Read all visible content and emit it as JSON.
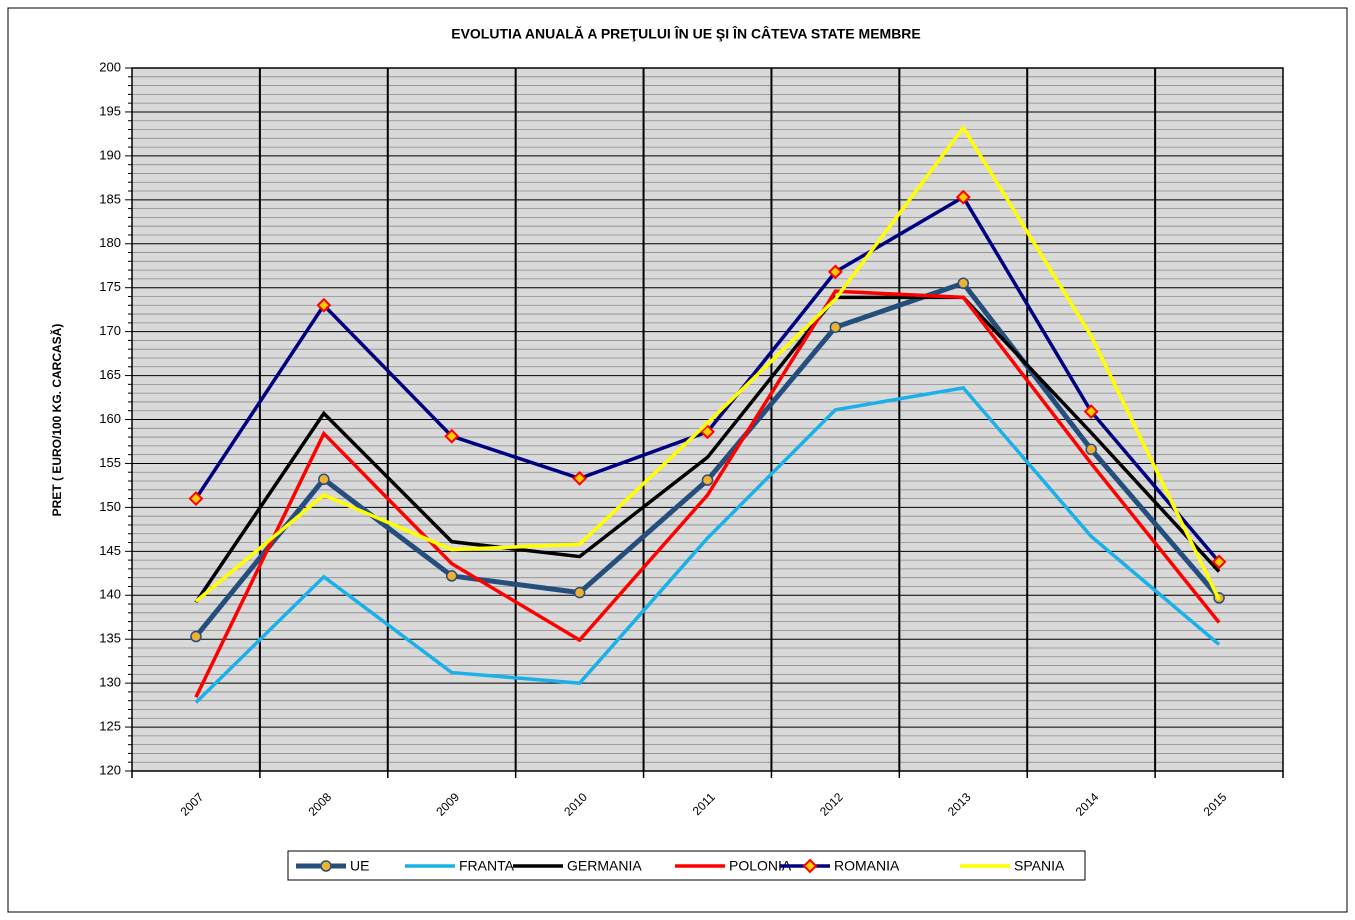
{
  "chart_data": {
    "type": "line",
    "title": "EVOLUTIA ANUALĂ  A PREŢULUI  ÎN  UE ŞI ÎN  CÂTEVA  STATE MEMBRE",
    "y_label": "PRET ( EURO/100 KG. CARCASĂ)",
    "categories": [
      "2007",
      "2008",
      "2009",
      "2010",
      "2011",
      "2012",
      "2013",
      "2014",
      "2015"
    ],
    "series": [
      {
        "name": "UE",
        "color": "#264e7d",
        "marker": "circle",
        "marker_color": "#f0b030",
        "values": [
          135.3,
          153.2,
          142.2,
          140.3,
          153.1,
          170.5,
          175.5,
          156.6,
          139.7
        ]
      },
      {
        "name": "FRANTA",
        "color": "#1ab0e8",
        "values": [
          127.8,
          142.1,
          131.2,
          130.0,
          146.5,
          161.1,
          163.6,
          146.7,
          134.4
        ]
      },
      {
        "name": "GERMANIA",
        "color": "#000000",
        "values": [
          139.2,
          160.7,
          146.1,
          144.4,
          155.7,
          173.9,
          173.9,
          158.5,
          142.7
        ]
      },
      {
        "name": "POLONIA",
        "color": "#ff0000",
        "values": [
          128.4,
          158.4,
          143.6,
          134.9,
          151.4,
          174.6,
          173.9,
          155.0,
          136.9
        ]
      },
      {
        "name": "ROMANIA",
        "color": "#000080",
        "marker": "diamond",
        "marker_color": "#ffcc00",
        "values": [
          151.0,
          173.0,
          158.1,
          153.3,
          158.6,
          176.8,
          185.3,
          160.9,
          143.8
        ]
      },
      {
        "name": "SPANIA",
        "color": "#ffff00",
        "values": [
          139.3,
          151.4,
          145.2,
          145.8,
          159.6,
          173.7,
          193.2,
          169.5,
          139.5
        ]
      }
    ],
    "ylim": [
      120,
      200
    ],
    "yticks": [
      120,
      125,
      130,
      135,
      140,
      145,
      150,
      155,
      160,
      165,
      170,
      175,
      180,
      185,
      190,
      195,
      200
    ],
    "grid": true,
    "legend": "bottom"
  }
}
